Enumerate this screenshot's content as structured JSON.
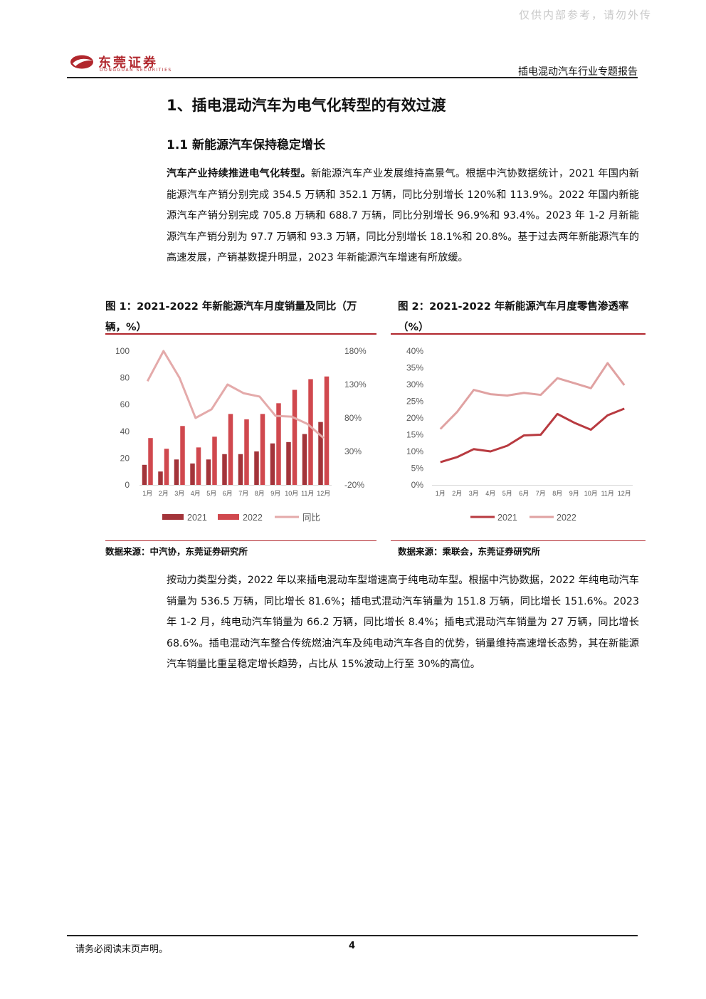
{
  "watermark": "仅供内部参考，请勿外传",
  "header": {
    "logo_text": "东莞证券",
    "logo_subtext": "DONGGUAN SECURITIES",
    "report_title": "插电混动汽车行业专题报告"
  },
  "section": {
    "heading": "1、插电混动汽车为电气化转型的有效过渡",
    "subheading": "1.1 新能源汽车保持稳定增长"
  },
  "paragraph1": {
    "lead": "汽车产业持续推进电气化转型。",
    "body": "新能源汽车产业发展维持高景气。根据中汽协数据统计，2021 年国内新能源汽车产销分别完成 354.5 万辆和 352.1 万辆，同比分别增长 120%和 113.9%。2022 年国内新能源汽车产销分别完成 705.8 万辆和 688.7 万辆，同比分别增长 96.9%和 93.4%。2023 年 1-2 月新能源汽车产销分别为 97.7 万辆和 93.3 万辆，同比分别增长 18.1%和 20.8%。基于过去两年新能源汽车的高速发展，产销基数提升明显，2023 年新能源汽车增速有所放缓。"
  },
  "figure1": {
    "title": "图 1：2021-2022 年新能源汽车月度销量及同比（万辆，%）",
    "source": "数据来源：中汽协，东莞证券研究所"
  },
  "figure2": {
    "title": "图 2：2021-2022 年新能源汽车月度零售渗透率（%）",
    "source": "数据来源：乘联会，东莞证券研究所"
  },
  "paragraph2": "按动力类型分类，2022 年以来插电混动车型增速高于纯电动车型。根据中汽协数据，2022 年纯电动汽车销量为 536.5 万辆，同比增长 81.6%；插电式混动汽车销量为 151.8 万辆，同比增长 151.6%。2023 年 1-2 月，纯电动汽车销量为 66.2 万辆，同比增长 8.4%；插电式混动汽车销量为 27 万辆，同比增长 68.6%。插电混动汽车整合传统燃油汽车及纯电动汽车各自的优势，销量维持高速增长态势，其在新能源汽车销量比重呈稳定增长趋势，占比从 15%波动上行至 30%的高位。",
  "footer": {
    "disclaimer": "请务必阅读末页声明。",
    "page": "4"
  },
  "colors": {
    "brand_red": "#b1272d",
    "bar_2021": "#a3343a",
    "bar_2022": "#d0484e",
    "line_yoy": "#e4aaaa",
    "line_2021": "#b83a40",
    "line_2022": "#e0a2a2"
  },
  "chart_data": [
    {
      "type": "bar",
      "categories": [
        "1月",
        "2月",
        "3月",
        "4月",
        "5月",
        "6月",
        "7月",
        "8月",
        "9月",
        "10月",
        "11月",
        "12月"
      ],
      "series": [
        {
          "name": "2021",
          "kind": "bar",
          "axis": "left",
          "values": [
            15,
            10,
            19,
            16,
            19,
            23,
            23,
            25,
            31,
            32,
            38,
            47
          ]
        },
        {
          "name": "2022",
          "kind": "bar",
          "axis": "left",
          "values": [
            35,
            27,
            44,
            28,
            36,
            53,
            49,
            53,
            61,
            71,
            79,
            81
          ]
        },
        {
          "name": "同比",
          "kind": "line",
          "axis": "right",
          "values": [
            135,
            180,
            140,
            80,
            93,
            130,
            117,
            112,
            83,
            82,
            71,
            50
          ]
        }
      ],
      "yticks_left": [
        "0",
        "20",
        "40",
        "60",
        "80",
        "100"
      ],
      "ylim_left": [
        0,
        100
      ],
      "yticks_right": [
        "-20%",
        "30%",
        "80%",
        "130%",
        "180%"
      ],
      "ylim_right": [
        -20,
        180
      ],
      "legend": "bottom",
      "grid": false
    },
    {
      "type": "line",
      "categories": [
        "1月",
        "2月",
        "3月",
        "4月",
        "5月",
        "6月",
        "7月",
        "8月",
        "9月",
        "10月",
        "11月",
        "12月"
      ],
      "series": [
        {
          "name": "2021",
          "values": [
            6.8,
            8.3,
            10.7,
            10.0,
            11.7,
            14.8,
            15.0,
            21.2,
            18.6,
            16.5,
            20.8,
            22.8
          ]
        },
        {
          "name": "2022",
          "values": [
            16.7,
            21.8,
            28.4,
            27.1,
            26.7,
            27.5,
            26.9,
            31.9,
            30.4,
            28.9,
            36.4,
            29.8
          ]
        }
      ],
      "yticks": [
        "0%",
        "5%",
        "10%",
        "15%",
        "20%",
        "25%",
        "30%",
        "35%",
        "40%"
      ],
      "ylim": [
        0,
        40
      ],
      "legend": "bottom",
      "grid": false
    }
  ]
}
